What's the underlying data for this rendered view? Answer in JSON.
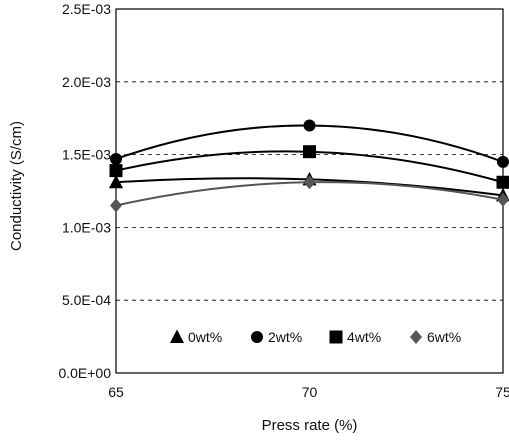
{
  "chart_data": {
    "type": "line",
    "title": "",
    "xlabel": "Press rate (%)",
    "ylabel": "Conductivity (S/cm)",
    "x": [
      65,
      70,
      75
    ],
    "x_tick_labels": [
      "65",
      "70",
      "75"
    ],
    "xlim": [
      65,
      75
    ],
    "ylim": [
      0,
      0.0025
    ],
    "y_ticks": [
      0,
      0.0005,
      0.001,
      0.0015,
      0.002,
      0.0025
    ],
    "y_tick_labels": [
      "0.0E+00",
      "5.0E-04",
      "1.0E-03",
      "1.5E-03",
      "2.0E-03",
      "2.5E-03"
    ],
    "grid": "horizontal dashed",
    "legend_position": "bottom",
    "series": [
      {
        "name": "0wt%",
        "marker": "triangle",
        "color": "#000000",
        "values": [
          0.00131,
          0.00133,
          0.00122
        ]
      },
      {
        "name": "2wt%",
        "marker": "circle",
        "color": "#000000",
        "values": [
          0.00147,
          0.0017,
          0.00145
        ]
      },
      {
        "name": "4wt%",
        "marker": "square",
        "color": "#000000",
        "values": [
          0.00139,
          0.00152,
          0.00131
        ]
      },
      {
        "name": "6wt%",
        "marker": "diamond",
        "color": "#555555",
        "values": [
          0.00115,
          0.00131,
          0.00119
        ]
      }
    ]
  }
}
